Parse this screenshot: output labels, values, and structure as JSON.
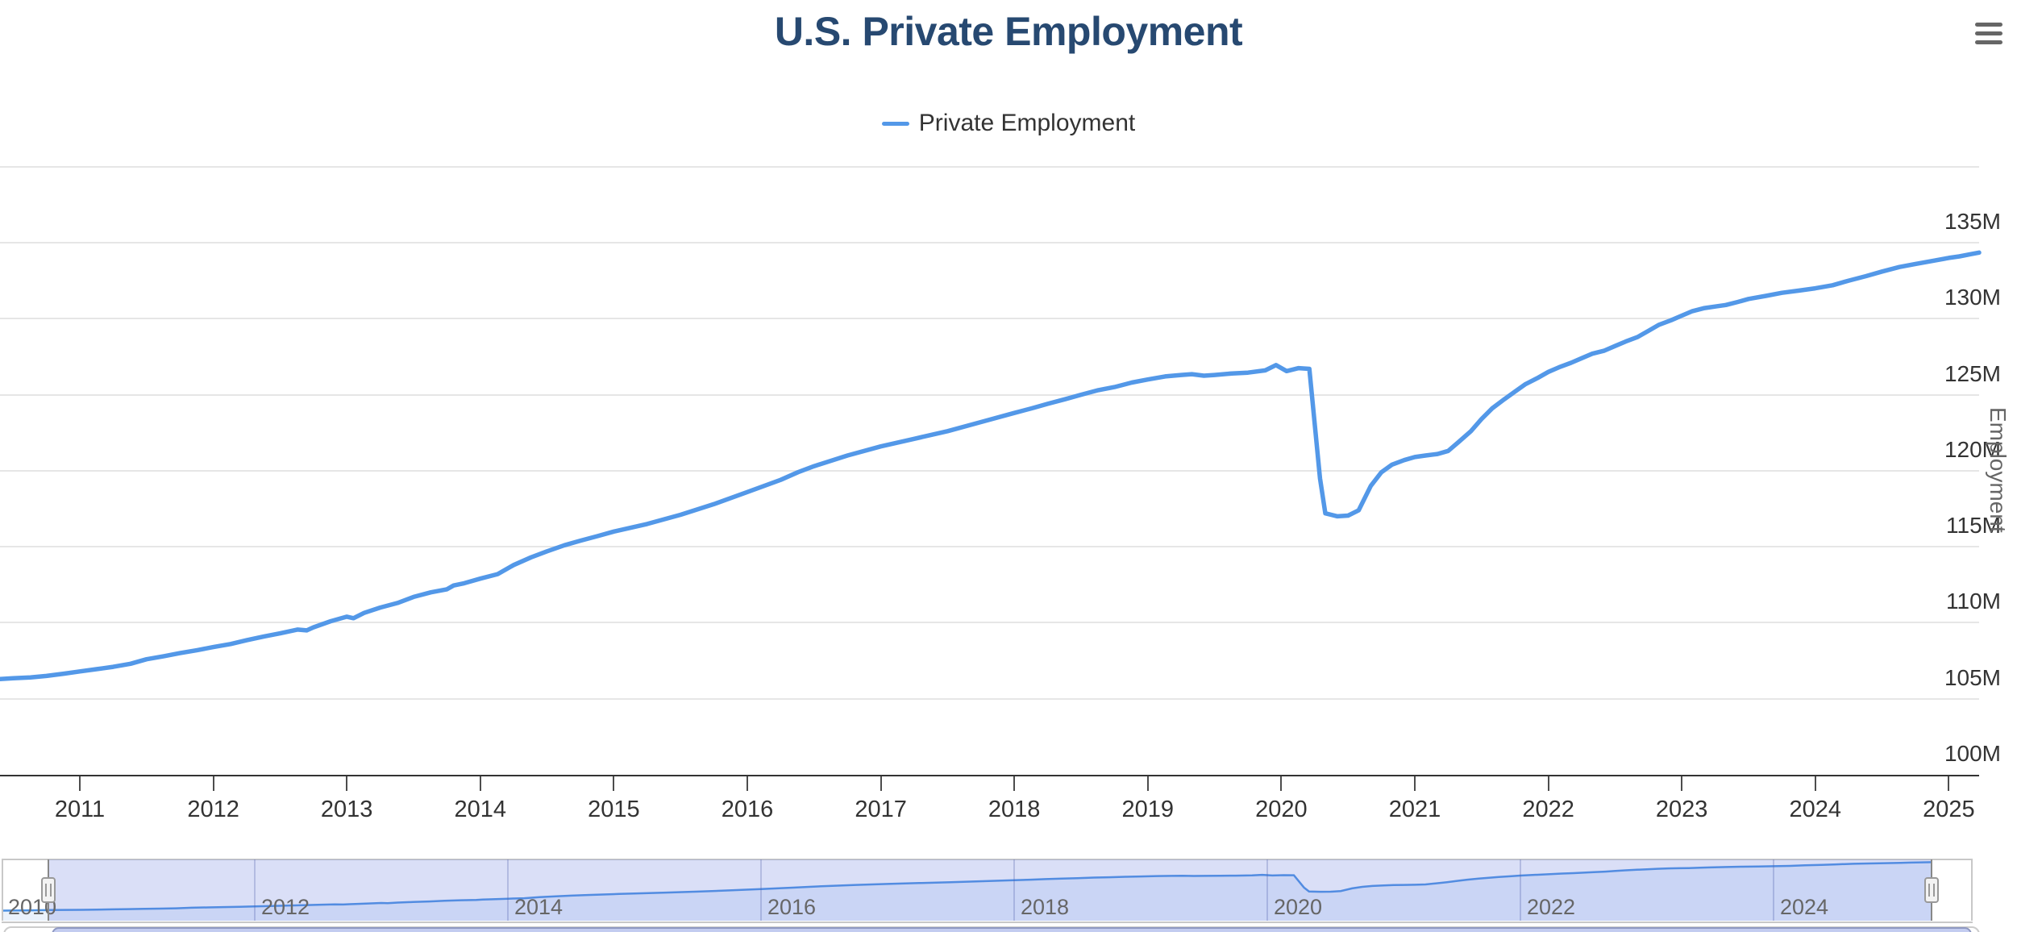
{
  "header": {
    "title": "U.S. Private Employment"
  },
  "menu": {
    "icon": "hamburger-menu-icon"
  },
  "legend": {
    "items": [
      {
        "label": "Private Employment",
        "color": "#5398e8"
      }
    ]
  },
  "chart_data": {
    "type": "line",
    "title": "U.S. Private Employment",
    "ylabel": "Employment",
    "unit": "millions",
    "grid": true,
    "legend_position": "top",
    "ylim": [
      100,
      140
    ],
    "y_ticks": [
      {
        "value": 140,
        "label": ""
      },
      {
        "value": 135,
        "label": "135M"
      },
      {
        "value": 130,
        "label": "130M"
      },
      {
        "value": 125,
        "label": "125M"
      },
      {
        "value": 120,
        "label": "120M"
      },
      {
        "value": 115,
        "label": "115M"
      },
      {
        "value": 110,
        "label": "110M"
      },
      {
        "value": 105,
        "label": "105M"
      },
      {
        "value": 100,
        "label": "100M"
      }
    ],
    "x_ticks": [
      {
        "value": 2011,
        "label": "2011"
      },
      {
        "value": 2012,
        "label": "2012"
      },
      {
        "value": 2013,
        "label": "2013"
      },
      {
        "value": 2014,
        "label": "2014"
      },
      {
        "value": 2015,
        "label": "2015"
      },
      {
        "value": 2016,
        "label": "2016"
      },
      {
        "value": 2017,
        "label": "2017"
      },
      {
        "value": 2018,
        "label": "2018"
      },
      {
        "value": 2019,
        "label": "2019"
      },
      {
        "value": 2020,
        "label": "2020"
      },
      {
        "value": 2021,
        "label": "2021"
      },
      {
        "value": 2022,
        "label": "2022"
      },
      {
        "value": 2023,
        "label": "2023"
      },
      {
        "value": 2024,
        "label": "2024"
      },
      {
        "value": 2025,
        "label": "2025"
      }
    ],
    "navigator": {
      "full_range": [
        2010.0,
        2025.6
      ],
      "selected_range": [
        2010.37,
        2025.25
      ],
      "x_labels": [
        {
          "value": 2010,
          "label": "2010"
        },
        {
          "value": 2012,
          "label": "2012"
        },
        {
          "value": 2014,
          "label": "2014"
        },
        {
          "value": 2016,
          "label": "2016"
        },
        {
          "value": 2018,
          "label": "2018"
        },
        {
          "value": 2020,
          "label": "2020"
        },
        {
          "value": 2022,
          "label": "2022"
        },
        {
          "value": 2024,
          "label": "2024"
        }
      ]
    },
    "series": [
      {
        "name": "Private Employment",
        "color": "#5398e8",
        "points": [
          [
            2010.0,
            105.9
          ],
          [
            2010.08,
            105.95
          ],
          [
            2010.17,
            106.0
          ],
          [
            2010.25,
            106.1
          ],
          [
            2010.38,
            106.3
          ],
          [
            2010.5,
            106.35
          ],
          [
            2010.63,
            106.4
          ],
          [
            2010.75,
            106.5
          ],
          [
            2010.88,
            106.65
          ],
          [
            2011.0,
            106.8
          ],
          [
            2011.13,
            106.95
          ],
          [
            2011.25,
            107.1
          ],
          [
            2011.38,
            107.3
          ],
          [
            2011.5,
            107.6
          ],
          [
            2011.63,
            107.8
          ],
          [
            2011.75,
            108.0
          ],
          [
            2011.88,
            108.2
          ],
          [
            2012.0,
            108.4
          ],
          [
            2012.13,
            108.6
          ],
          [
            2012.25,
            108.85
          ],
          [
            2012.38,
            109.1
          ],
          [
            2012.5,
            109.3
          ],
          [
            2012.63,
            109.55
          ],
          [
            2012.7,
            109.5
          ],
          [
            2012.75,
            109.7
          ],
          [
            2012.88,
            110.1
          ],
          [
            2013.0,
            110.4
          ],
          [
            2013.05,
            110.3
          ],
          [
            2013.13,
            110.65
          ],
          [
            2013.25,
            111.0
          ],
          [
            2013.38,
            111.3
          ],
          [
            2013.5,
            111.7
          ],
          [
            2013.63,
            112.0
          ],
          [
            2013.75,
            112.2
          ],
          [
            2013.8,
            112.45
          ],
          [
            2013.88,
            112.6
          ],
          [
            2014.0,
            112.9
          ],
          [
            2014.13,
            113.2
          ],
          [
            2014.25,
            113.8
          ],
          [
            2014.38,
            114.3
          ],
          [
            2014.5,
            114.7
          ],
          [
            2014.63,
            115.1
          ],
          [
            2014.75,
            115.4
          ],
          [
            2014.88,
            115.7
          ],
          [
            2015.0,
            116.0
          ],
          [
            2015.25,
            116.5
          ],
          [
            2015.5,
            117.1
          ],
          [
            2015.75,
            117.8
          ],
          [
            2016.0,
            118.6
          ],
          [
            2016.25,
            119.4
          ],
          [
            2016.38,
            119.9
          ],
          [
            2016.5,
            120.3
          ],
          [
            2016.75,
            121.0
          ],
          [
            2017.0,
            121.6
          ],
          [
            2017.25,
            122.1
          ],
          [
            2017.5,
            122.6
          ],
          [
            2017.75,
            123.2
          ],
          [
            2018.0,
            123.8
          ],
          [
            2018.13,
            124.1
          ],
          [
            2018.25,
            124.4
          ],
          [
            2018.38,
            124.7
          ],
          [
            2018.5,
            125.0
          ],
          [
            2018.63,
            125.3
          ],
          [
            2018.75,
            125.5
          ],
          [
            2018.88,
            125.8
          ],
          [
            2019.0,
            126.0
          ],
          [
            2019.13,
            126.2
          ],
          [
            2019.25,
            126.3
          ],
          [
            2019.33,
            126.35
          ],
          [
            2019.42,
            126.25
          ],
          [
            2019.5,
            126.3
          ],
          [
            2019.63,
            126.4
          ],
          [
            2019.75,
            126.45
          ],
          [
            2019.88,
            126.6
          ],
          [
            2019.96,
            126.95
          ],
          [
            2020.04,
            126.55
          ],
          [
            2020.13,
            126.75
          ],
          [
            2020.21,
            126.7
          ],
          [
            2020.29,
            119.5
          ],
          [
            2020.33,
            117.2
          ],
          [
            2020.42,
            117.0
          ],
          [
            2020.5,
            117.05
          ],
          [
            2020.58,
            117.4
          ],
          [
            2020.67,
            119.0
          ],
          [
            2020.75,
            119.9
          ],
          [
            2020.83,
            120.4
          ],
          [
            2020.92,
            120.7
          ],
          [
            2021.0,
            120.9
          ],
          [
            2021.08,
            121.0
          ],
          [
            2021.17,
            121.1
          ],
          [
            2021.25,
            121.3
          ],
          [
            2021.33,
            121.9
          ],
          [
            2021.42,
            122.6
          ],
          [
            2021.5,
            123.4
          ],
          [
            2021.58,
            124.1
          ],
          [
            2021.67,
            124.7
          ],
          [
            2021.75,
            125.2
          ],
          [
            2021.83,
            125.7
          ],
          [
            2021.92,
            126.1
          ],
          [
            2022.0,
            126.5
          ],
          [
            2022.08,
            126.8
          ],
          [
            2022.17,
            127.1
          ],
          [
            2022.25,
            127.4
          ],
          [
            2022.33,
            127.7
          ],
          [
            2022.42,
            127.9
          ],
          [
            2022.5,
            128.2
          ],
          [
            2022.58,
            128.5
          ],
          [
            2022.67,
            128.8
          ],
          [
            2022.75,
            129.2
          ],
          [
            2022.83,
            129.6
          ],
          [
            2022.92,
            129.9
          ],
          [
            2023.0,
            130.2
          ],
          [
            2023.08,
            130.5
          ],
          [
            2023.17,
            130.7
          ],
          [
            2023.25,
            130.8
          ],
          [
            2023.33,
            130.9
          ],
          [
            2023.42,
            131.1
          ],
          [
            2023.5,
            131.3
          ],
          [
            2023.63,
            131.5
          ],
          [
            2023.75,
            131.7
          ],
          [
            2023.88,
            131.85
          ],
          [
            2024.0,
            132.0
          ],
          [
            2024.13,
            132.2
          ],
          [
            2024.25,
            132.5
          ],
          [
            2024.38,
            132.8
          ],
          [
            2024.5,
            133.1
          ],
          [
            2024.63,
            133.4
          ],
          [
            2024.75,
            133.6
          ],
          [
            2024.88,
            133.8
          ],
          [
            2025.0,
            134.0
          ],
          [
            2025.08,
            134.1
          ],
          [
            2025.17,
            134.25
          ],
          [
            2025.25,
            134.35
          ]
        ]
      }
    ]
  }
}
